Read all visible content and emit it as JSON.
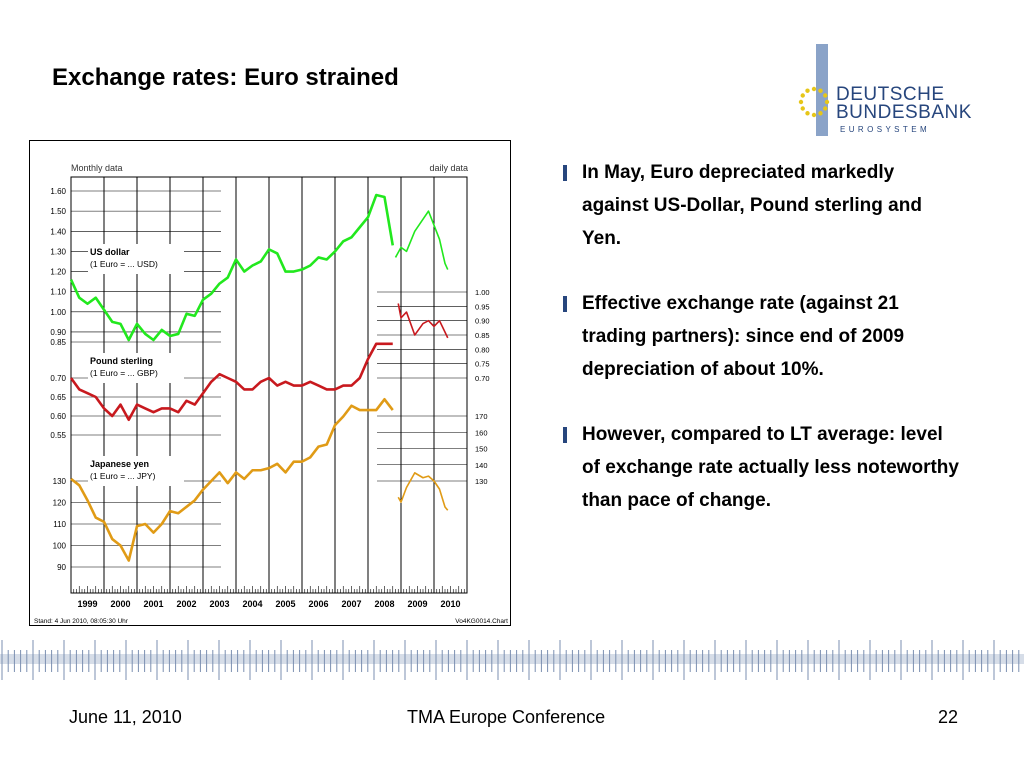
{
  "slide": {
    "title": "Exchange rates: Euro strained",
    "logo": {
      "line1": "DEUTSCHE",
      "line2": "BUNDESBANK",
      "line3": "EUROSYSTEM"
    },
    "bullets": [
      "In May, Euro depreciated markedly against US-Dollar, Pound sterling and Yen.",
      "Effective exchange rate (against 21 trading partners): since end of 2009 depreciation of about 10%.",
      "However, compared to LT average: level of exchange rate actually less noteworthy than pace of change."
    ],
    "footer": {
      "date": "June 11, 2010",
      "event": "TMA Europe Conference",
      "page": "22"
    },
    "colors": {
      "accent": "#27467d",
      "usd": "#22e81e",
      "gbp": "#c8191e",
      "jpy": "#e09b16"
    }
  },
  "chart_data": {
    "type": "line",
    "header_left": "Monthly data",
    "header_right": "daily data",
    "footnote_left": "Stand: 4 Jun 2010, 08:05:30 Uhr",
    "footnote_right": "Vo4KG0014.Chart",
    "x_years": [
      "1999",
      "2000",
      "2001",
      "2002",
      "2003",
      "2004",
      "2005",
      "2006",
      "2007",
      "2008",
      "2009",
      "2010"
    ],
    "grid": true,
    "series": [
      {
        "name": "US dollar",
        "unit": "(1 Euro = ... USD)",
        "color": "#22e81e",
        "left_ticks": [
          "1.60",
          "1.50",
          "1.40",
          "1.30",
          "1.20",
          "1.10",
          "1.00",
          "0.90",
          "0.85"
        ],
        "monthly": [
          [
            "1999-01",
            1.16
          ],
          [
            "1999-04",
            1.07
          ],
          [
            "1999-07",
            1.04
          ],
          [
            "1999-10",
            1.07
          ],
          [
            "2000-01",
            1.01
          ],
          [
            "2000-04",
            0.95
          ],
          [
            "2000-07",
            0.94
          ],
          [
            "2000-10",
            0.86
          ],
          [
            "2001-01",
            0.94
          ],
          [
            "2001-04",
            0.89
          ],
          [
            "2001-07",
            0.86
          ],
          [
            "2001-10",
            0.91
          ],
          [
            "2002-01",
            0.88
          ],
          [
            "2002-04",
            0.89
          ],
          [
            "2002-07",
            0.99
          ],
          [
            "2002-10",
            0.98
          ],
          [
            "2003-01",
            1.06
          ],
          [
            "2003-04",
            1.09
          ],
          [
            "2003-07",
            1.14
          ],
          [
            "2003-10",
            1.17
          ],
          [
            "2004-01",
            1.26
          ],
          [
            "2004-04",
            1.2
          ],
          [
            "2004-07",
            1.23
          ],
          [
            "2004-10",
            1.25
          ],
          [
            "2005-01",
            1.31
          ],
          [
            "2005-04",
            1.29
          ],
          [
            "2005-07",
            1.2
          ],
          [
            "2005-10",
            1.2
          ],
          [
            "2006-01",
            1.21
          ],
          [
            "2006-04",
            1.23
          ],
          [
            "2006-07",
            1.27
          ],
          [
            "2006-10",
            1.26
          ],
          [
            "2007-01",
            1.3
          ],
          [
            "2007-04",
            1.35
          ],
          [
            "2007-07",
            1.37
          ],
          [
            "2007-10",
            1.42
          ],
          [
            "2008-01",
            1.47
          ],
          [
            "2008-04",
            1.58
          ],
          [
            "2008-07",
            1.57
          ],
          [
            "2008-10",
            1.33
          ]
        ],
        "daily": [
          [
            "2008-11",
            1.27
          ],
          [
            "2009-01",
            1.32
          ],
          [
            "2009-03",
            1.3
          ],
          [
            "2009-06",
            1.4
          ],
          [
            "2009-09",
            1.46
          ],
          [
            "2009-11",
            1.5
          ],
          [
            "2010-01",
            1.43
          ],
          [
            "2010-03",
            1.36
          ],
          [
            "2010-05",
            1.24
          ],
          [
            "2010-06",
            1.21
          ]
        ]
      },
      {
        "name": "Pound sterling",
        "unit": "(1 Euro = ... GBP)",
        "color": "#c8191e",
        "left_ticks": [
          "0.70",
          "0.65",
          "0.60",
          "0.55"
        ],
        "right_ticks": [
          "1.00",
          "0.95",
          "0.90",
          "0.85",
          "0.80",
          "0.75",
          "0.70"
        ],
        "monthly": [
          [
            "1999-01",
            0.7
          ],
          [
            "1999-04",
            0.67
          ],
          [
            "1999-07",
            0.66
          ],
          [
            "1999-10",
            0.65
          ],
          [
            "2000-01",
            0.62
          ],
          [
            "2000-04",
            0.6
          ],
          [
            "2000-07",
            0.63
          ],
          [
            "2000-10",
            0.59
          ],
          [
            "2001-01",
            0.63
          ],
          [
            "2001-04",
            0.62
          ],
          [
            "2001-07",
            0.61
          ],
          [
            "2001-10",
            0.62
          ],
          [
            "2002-01",
            0.62
          ],
          [
            "2002-04",
            0.61
          ],
          [
            "2002-07",
            0.64
          ],
          [
            "2002-10",
            0.63
          ],
          [
            "2003-01",
            0.66
          ],
          [
            "2003-04",
            0.69
          ],
          [
            "2003-07",
            0.71
          ],
          [
            "2003-10",
            0.7
          ],
          [
            "2004-01",
            0.69
          ],
          [
            "2004-04",
            0.67
          ],
          [
            "2004-07",
            0.67
          ],
          [
            "2004-10",
            0.69
          ],
          [
            "2005-01",
            0.7
          ],
          [
            "2005-04",
            0.68
          ],
          [
            "2005-07",
            0.69
          ],
          [
            "2005-10",
            0.68
          ],
          [
            "2006-01",
            0.68
          ],
          [
            "2006-04",
            0.69
          ],
          [
            "2006-07",
            0.68
          ],
          [
            "2006-10",
            0.67
          ],
          [
            "2007-01",
            0.67
          ],
          [
            "2007-04",
            0.68
          ],
          [
            "2007-07",
            0.68
          ],
          [
            "2007-10",
            0.7
          ],
          [
            "2008-01",
            0.75
          ],
          [
            "2008-04",
            0.79
          ],
          [
            "2008-07",
            0.79
          ],
          [
            "2008-10",
            0.79
          ]
        ],
        "daily": [
          [
            "2008-12",
            0.96
          ],
          [
            "2009-01",
            0.91
          ],
          [
            "2009-03",
            0.93
          ],
          [
            "2009-06",
            0.85
          ],
          [
            "2009-09",
            0.89
          ],
          [
            "2009-11",
            0.9
          ],
          [
            "2010-01",
            0.88
          ],
          [
            "2010-03",
            0.9
          ],
          [
            "2010-05",
            0.86
          ],
          [
            "2010-06",
            0.84
          ]
        ]
      },
      {
        "name": "Japanese yen",
        "unit": "(1 Euro = ... JPY)",
        "color": "#e09b16",
        "left_ticks": [
          "130",
          "120",
          "110",
          "100",
          "90"
        ],
        "right_ticks": [
          "170",
          "160",
          "150",
          "140",
          "130"
        ],
        "monthly": [
          [
            "1999-01",
            131
          ],
          [
            "1999-04",
            128
          ],
          [
            "1999-07",
            121
          ],
          [
            "1999-10",
            113
          ],
          [
            "2000-01",
            111
          ],
          [
            "2000-04",
            103
          ],
          [
            "2000-07",
            100
          ],
          [
            "2000-10",
            93
          ],
          [
            "2001-01",
            109
          ],
          [
            "2001-04",
            110
          ],
          [
            "2001-07",
            106
          ],
          [
            "2001-10",
            110
          ],
          [
            "2002-01",
            116
          ],
          [
            "2002-04",
            115
          ],
          [
            "2002-07",
            118
          ],
          [
            "2002-10",
            121
          ],
          [
            "2003-01",
            126
          ],
          [
            "2003-04",
            130
          ],
          [
            "2003-07",
            134
          ],
          [
            "2003-10",
            129
          ],
          [
            "2004-01",
            134
          ],
          [
            "2004-04",
            131
          ],
          [
            "2004-07",
            135
          ],
          [
            "2004-10",
            135
          ],
          [
            "2005-01",
            136
          ],
          [
            "2005-04",
            138
          ],
          [
            "2005-07",
            134
          ],
          [
            "2005-10",
            139
          ],
          [
            "2006-01",
            139
          ],
          [
            "2006-04",
            141
          ],
          [
            "2006-07",
            146
          ],
          [
            "2006-10",
            147
          ],
          [
            "2007-01",
            156
          ],
          [
            "2007-04",
            160
          ],
          [
            "2007-07",
            165
          ],
          [
            "2007-10",
            163
          ],
          [
            "2008-01",
            163
          ],
          [
            "2008-04",
            163
          ],
          [
            "2008-07",
            168
          ],
          [
            "2008-10",
            163
          ]
        ],
        "daily": [
          [
            "2008-12",
            120
          ],
          [
            "2009-01",
            117
          ],
          [
            "2009-03",
            126
          ],
          [
            "2009-06",
            135
          ],
          [
            "2009-09",
            132
          ],
          [
            "2009-11",
            133
          ],
          [
            "2010-01",
            130
          ],
          [
            "2010-03",
            125
          ],
          [
            "2010-05",
            114
          ],
          [
            "2010-06",
            112
          ]
        ]
      }
    ]
  }
}
